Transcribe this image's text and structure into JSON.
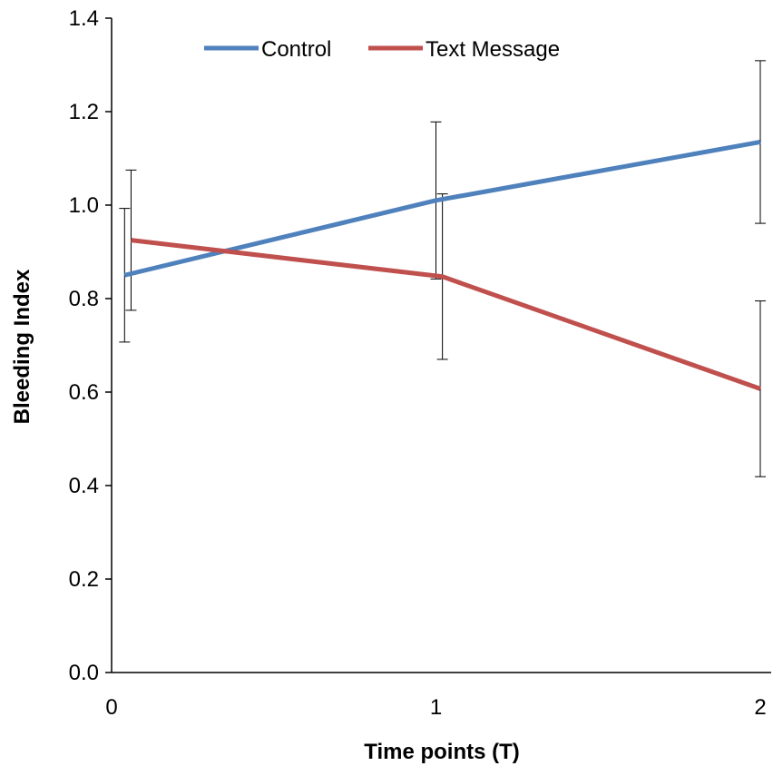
{
  "chart_data": {
    "type": "line",
    "title": "",
    "xlabel": "Time points (T)",
    "ylabel": "Bleeding Index",
    "xlim": [
      0,
      2
    ],
    "ylim": [
      0,
      1.4
    ],
    "x_ticks": [
      "0",
      "1",
      "2"
    ],
    "y_ticks": [
      "0.0",
      "0.2",
      "0.4",
      "0.6",
      "0.8",
      "1.0",
      "1.2",
      "1.4"
    ],
    "grid": false,
    "legend_position": "top",
    "series": [
      {
        "name": "Control",
        "color": "#4f81bd",
        "x": [
          0.04,
          1.0,
          2.0
        ],
        "y": [
          0.85,
          1.01,
          1.135
        ],
        "error": [
          0.143,
          0.168,
          0.174
        ]
      },
      {
        "name": "Text Message",
        "color": "#c0504d",
        "x": [
          0.06,
          1.02,
          2.0
        ],
        "y": [
          0.925,
          0.847,
          0.607
        ],
        "error": [
          0.15,
          0.177,
          0.188
        ]
      }
    ]
  }
}
